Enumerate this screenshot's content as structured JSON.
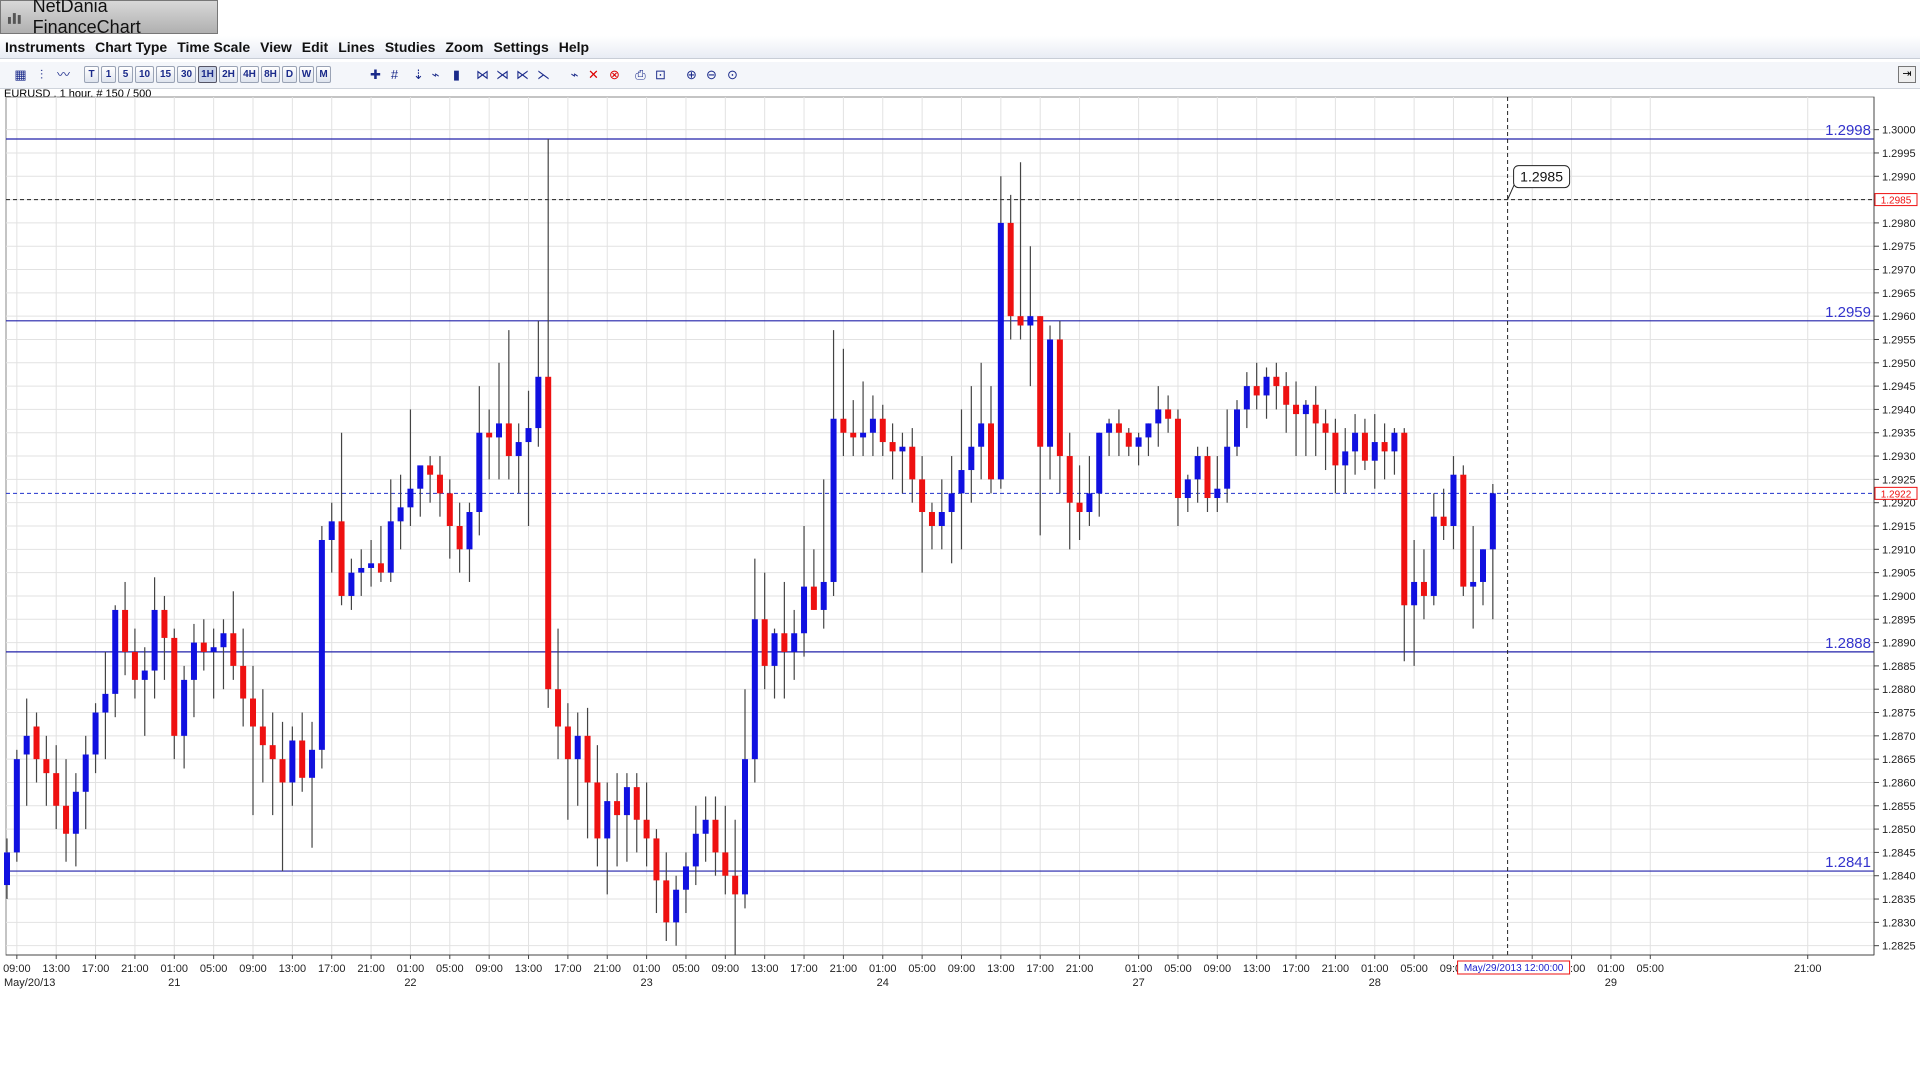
{
  "window": {
    "title": "NetDania FinanceChart"
  },
  "menu": [
    "Instruments",
    "Chart Type",
    "Time Scale",
    "View",
    "Edit",
    "Lines",
    "Studies",
    "Zoom",
    "Settings",
    "Help"
  ],
  "toolbar": {
    "timeframes": [
      "T",
      "1",
      "5",
      "10",
      "15",
      "30",
      "1H",
      "2H",
      "4H",
      "8H",
      "D",
      "W",
      "M"
    ],
    "selected_timeframe": "1H"
  },
  "instrument_label": "EURUSD , 1 hour, # 150 / 500",
  "chart_data": {
    "type": "candlestick",
    "instrument": "EURUSD",
    "timeframe": "1 hour",
    "ylim": [
      1.2823,
      1.3007
    ],
    "ytick_step": 0.0005,
    "ytick_labels": [
      "1.2825",
      "1.2830",
      "1.2835",
      "1.2840",
      "1.2845",
      "1.2850",
      "1.2855",
      "1.2860",
      "1.2865",
      "1.2870",
      "1.2875",
      "1.2880",
      "1.2885",
      "1.2890",
      "1.2895",
      "1.2900",
      "1.2905",
      "1.2910",
      "1.2915",
      "1.2920",
      "1.2925",
      "1.2930",
      "1.2935",
      "1.2940",
      "1.2945",
      "1.2950",
      "1.2955",
      "1.2960",
      "1.2965",
      "1.2970",
      "1.2975",
      "1.2980",
      "1.2985",
      "1.2990",
      "1.2995",
      "1.3000"
    ],
    "colors": {
      "up": "#1010e0",
      "down": "#ee1111",
      "wick": "#444444",
      "hline": "#2222aa",
      "grid": "#e2e2e2"
    },
    "horizontal_lines": [
      {
        "value": 1.2998,
        "label": "1.2998",
        "style": "solid"
      },
      {
        "value": 1.2959,
        "label": "1.2959",
        "style": "solid"
      },
      {
        "value": 1.2888,
        "label": "1.2888",
        "style": "solid"
      },
      {
        "value": 1.2841,
        "label": "1.2841",
        "style": "solid"
      },
      {
        "value": 1.2985,
        "label": "1.2985",
        "style": "dashed-black",
        "axis_marker": true
      },
      {
        "value": 1.2922,
        "label": "1.2922",
        "style": "dashed-blue",
        "axis_marker": true
      }
    ],
    "crosshair": {
      "bar": 152.5,
      "price": 1.2985,
      "price_label": "1.2985",
      "time_label": "May/29/2013 12:00:00"
    },
    "x_tick_labels": [
      {
        "bar": 1,
        "label": "09:00"
      },
      {
        "bar": 5,
        "label": "13:00"
      },
      {
        "bar": 9,
        "label": "17:00"
      },
      {
        "bar": 13,
        "label": "21:00"
      },
      {
        "bar": 17,
        "label": "01:00",
        "sub": "21"
      },
      {
        "bar": 21,
        "label": "05:00"
      },
      {
        "bar": 25,
        "label": "09:00"
      },
      {
        "bar": 29,
        "label": "13:00"
      },
      {
        "bar": 33,
        "label": "17:00"
      },
      {
        "bar": 37,
        "label": "21:00"
      },
      {
        "bar": 41,
        "label": "01:00",
        "sub": "22"
      },
      {
        "bar": 45,
        "label": "05:00"
      },
      {
        "bar": 49,
        "label": "09:00"
      },
      {
        "bar": 53,
        "label": "13:00"
      },
      {
        "bar": 57,
        "label": "17:00"
      },
      {
        "bar": 61,
        "label": "21:00"
      },
      {
        "bar": 65,
        "label": "01:00",
        "sub": "23"
      },
      {
        "bar": 69,
        "label": "05:00"
      },
      {
        "bar": 73,
        "label": "09:00"
      },
      {
        "bar": 77,
        "label": "13:00"
      },
      {
        "bar": 81,
        "label": "17:00"
      },
      {
        "bar": 85,
        "label": "21:00"
      },
      {
        "bar": 89,
        "label": "01:00",
        "sub": "24"
      },
      {
        "bar": 93,
        "label": "05:00"
      },
      {
        "bar": 97,
        "label": "09:00"
      },
      {
        "bar": 101,
        "label": "13:00"
      },
      {
        "bar": 105,
        "label": "17:00"
      },
      {
        "bar": 109,
        "label": "21:00"
      },
      {
        "bar": 115,
        "label": "01:00",
        "sub": "27"
      },
      {
        "bar": 119,
        "label": "05:00"
      },
      {
        "bar": 123,
        "label": "09:00"
      },
      {
        "bar": 127,
        "label": "13:00"
      },
      {
        "bar": 131,
        "label": "17:00"
      },
      {
        "bar": 135,
        "label": "21:00"
      },
      {
        "bar": 139,
        "label": "01:00",
        "sub": "28"
      },
      {
        "bar": 143,
        "label": "05:00"
      },
      {
        "bar": 147,
        "label": "09:00"
      },
      {
        "bar": 151,
        "label": "13:00"
      },
      {
        "bar": 155,
        "label": "17:00"
      },
      {
        "bar": 159,
        "label": "21:00"
      },
      {
        "bar": 163,
        "label": "01:00",
        "sub": "29"
      },
      {
        "bar": 167,
        "label": "05:00"
      },
      {
        "bar": 183,
        "label": "21:00"
      }
    ],
    "first_date_label": "May/20/13",
    "candles": [
      [
        1.2838,
        1.2848,
        1.2835,
        1.2845
      ],
      [
        1.2845,
        1.2867,
        1.2843,
        1.2865
      ],
      [
        1.2866,
        1.2878,
        1.2855,
        1.287
      ],
      [
        1.2872,
        1.2875,
        1.286,
        1.2865
      ],
      [
        1.2865,
        1.287,
        1.2855,
        1.2862
      ],
      [
        1.2862,
        1.2868,
        1.285,
        1.2855
      ],
      [
        1.2855,
        1.2865,
        1.2843,
        1.2849
      ],
      [
        1.2849,
        1.2862,
        1.2842,
        1.2858
      ],
      [
        1.2858,
        1.287,
        1.285,
        1.2866
      ],
      [
        1.2866,
        1.2877,
        1.2862,
        1.2875
      ],
      [
        1.2875,
        1.2888,
        1.2865,
        1.2879
      ],
      [
        1.2879,
        1.2898,
        1.2874,
        1.2897
      ],
      [
        1.2897,
        1.2903,
        1.2883,
        1.2888
      ],
      [
        1.2888,
        1.2893,
        1.2878,
        1.2882
      ],
      [
        1.2882,
        1.2889,
        1.287,
        1.2884
      ],
      [
        1.2884,
        1.2904,
        1.2878,
        1.2897
      ],
      [
        1.2897,
        1.29,
        1.2882,
        1.2891
      ],
      [
        1.2891,
        1.2893,
        1.2865,
        1.287
      ],
      [
        1.287,
        1.2885,
        1.2863,
        1.2882
      ],
      [
        1.2882,
        1.2894,
        1.2874,
        1.289
      ],
      [
        1.289,
        1.2895,
        1.2884,
        1.2888
      ],
      [
        1.2888,
        1.2893,
        1.2878,
        1.2889
      ],
      [
        1.2889,
        1.2895,
        1.288,
        1.2892
      ],
      [
        1.2892,
        1.2901,
        1.2882,
        1.2885
      ],
      [
        1.2885,
        1.2893,
        1.2872,
        1.2878
      ],
      [
        1.2878,
        1.2885,
        1.2853,
        1.2872
      ],
      [
        1.2872,
        1.288,
        1.286,
        1.2868
      ],
      [
        1.2868,
        1.2875,
        1.2853,
        1.2865
      ],
      [
        1.2865,
        1.2873,
        1.2841,
        1.286
      ],
      [
        1.286,
        1.2872,
        1.2855,
        1.2869
      ],
      [
        1.2869,
        1.2875,
        1.2858,
        1.2861
      ],
      [
        1.2861,
        1.2873,
        1.2846,
        1.2867
      ],
      [
        1.2867,
        1.2915,
        1.2863,
        1.2912
      ],
      [
        1.2912,
        1.292,
        1.2905,
        1.2916
      ],
      [
        1.2916,
        1.2935,
        1.2898,
        1.29
      ],
      [
        1.29,
        1.2908,
        1.2897,
        1.2905
      ],
      [
        1.2905,
        1.291,
        1.29,
        1.2906
      ],
      [
        1.2906,
        1.2912,
        1.2902,
        1.2907
      ],
      [
        1.2907,
        1.2915,
        1.2903,
        1.2905
      ],
      [
        1.2905,
        1.2925,
        1.2903,
        1.2916
      ],
      [
        1.2916,
        1.2926,
        1.291,
        1.2919
      ],
      [
        1.2919,
        1.294,
        1.2915,
        1.2923
      ],
      [
        1.2923,
        1.2927,
        1.2917,
        1.2928
      ],
      [
        1.2928,
        1.293,
        1.292,
        1.2926
      ],
      [
        1.2926,
        1.293,
        1.2917,
        1.2922
      ],
      [
        1.2922,
        1.2925,
        1.2908,
        1.2915
      ],
      [
        1.2915,
        1.292,
        1.2905,
        1.291
      ],
      [
        1.291,
        1.292,
        1.2903,
        1.2918
      ],
      [
        1.2918,
        1.2945,
        1.2913,
        1.2935
      ],
      [
        1.2935,
        1.294,
        1.2925,
        1.2934
      ],
      [
        1.2934,
        1.295,
        1.2925,
        1.2937
      ],
      [
        1.2937,
        1.2957,
        1.2925,
        1.293
      ],
      [
        1.293,
        1.2937,
        1.2922,
        1.2933
      ],
      [
        1.2933,
        1.2944,
        1.2915,
        1.2936
      ],
      [
        1.2936,
        1.2959,
        1.2932,
        1.2947
      ],
      [
        1.2947,
        1.2998,
        1.2876,
        1.288
      ],
      [
        1.288,
        1.2893,
        1.2865,
        1.2872
      ],
      [
        1.2872,
        1.2877,
        1.2852,
        1.2865
      ],
      [
        1.2865,
        1.2875,
        1.2855,
        1.287
      ],
      [
        1.287,
        1.2876,
        1.2848,
        1.286
      ],
      [
        1.286,
        1.2868,
        1.2842,
        1.2848
      ],
      [
        1.2848,
        1.286,
        1.2836,
        1.2856
      ],
      [
        1.2856,
        1.2862,
        1.2842,
        1.2853
      ],
      [
        1.2853,
        1.2862,
        1.2843,
        1.2859
      ],
      [
        1.2859,
        1.2862,
        1.2845,
        1.2852
      ],
      [
        1.2852,
        1.286,
        1.2842,
        1.2848
      ],
      [
        1.2848,
        1.285,
        1.2832,
        1.2839
      ],
      [
        1.2839,
        1.2845,
        1.2826,
        1.283
      ],
      [
        1.283,
        1.284,
        1.2825,
        1.2837
      ],
      [
        1.2837,
        1.2845,
        1.2832,
        1.2842
      ],
      [
        1.2842,
        1.2855,
        1.2838,
        1.2849
      ],
      [
        1.2849,
        1.2857,
        1.2843,
        1.2852
      ],
      [
        1.2852,
        1.2857,
        1.284,
        1.2845
      ],
      [
        1.2845,
        1.2855,
        1.2836,
        1.284
      ],
      [
        1.284,
        1.2852,
        1.2823,
        1.2836
      ],
      [
        1.2836,
        1.288,
        1.2833,
        1.2865
      ],
      [
        1.2865,
        1.2908,
        1.286,
        1.2895
      ],
      [
        1.2895,
        1.2905,
        1.288,
        1.2885
      ],
      [
        1.2885,
        1.2893,
        1.2878,
        1.2892
      ],
      [
        1.2892,
        1.2903,
        1.2878,
        1.2888
      ],
      [
        1.2888,
        1.2897,
        1.2882,
        1.2892
      ],
      [
        1.2892,
        1.2915,
        1.2887,
        1.2902
      ],
      [
        1.2902,
        1.291,
        1.2897,
        1.2897
      ],
      [
        1.2897,
        1.2925,
        1.2893,
        1.2903
      ],
      [
        1.2903,
        1.2957,
        1.29,
        1.2938
      ],
      [
        1.2938,
        1.2953,
        1.293,
        1.2935
      ],
      [
        1.2935,
        1.2942,
        1.293,
        1.2934
      ],
      [
        1.2934,
        1.2946,
        1.293,
        1.2935
      ],
      [
        1.2935,
        1.2943,
        1.293,
        1.2938
      ],
      [
        1.2938,
        1.2941,
        1.293,
        1.2933
      ],
      [
        1.2933,
        1.2937,
        1.2925,
        1.2931
      ],
      [
        1.2931,
        1.2935,
        1.2922,
        1.2932
      ],
      [
        1.2932,
        1.2936,
        1.292,
        1.2925
      ],
      [
        1.2925,
        1.293,
        1.2905,
        1.2918
      ],
      [
        1.2918,
        1.292,
        1.291,
        1.2915
      ],
      [
        1.2915,
        1.2925,
        1.291,
        1.2918
      ],
      [
        1.2918,
        1.293,
        1.2907,
        1.2922
      ],
      [
        1.2922,
        1.294,
        1.291,
        1.2927
      ],
      [
        1.2927,
        1.2945,
        1.292,
        1.2932
      ],
      [
        1.2932,
        1.295,
        1.2925,
        1.2937
      ],
      [
        1.2937,
        1.2945,
        1.2922,
        1.2925
      ],
      [
        1.2925,
        1.299,
        1.2923,
        1.298
      ],
      [
        1.298,
        1.2986,
        1.2955,
        1.296
      ],
      [
        1.296,
        1.2993,
        1.2955,
        1.2958
      ],
      [
        1.2958,
        1.2975,
        1.2945,
        1.296
      ],
      [
        1.296,
        1.296,
        1.2913,
        1.2932
      ],
      [
        1.2932,
        1.2958,
        1.2925,
        1.2955
      ],
      [
        1.2955,
        1.2959,
        1.2922,
        1.293
      ],
      [
        1.293,
        1.2935,
        1.291,
        1.292
      ],
      [
        1.292,
        1.2928,
        1.2912,
        1.2918
      ],
      [
        1.2918,
        1.293,
        1.2915,
        1.2922
      ],
      [
        1.2922,
        1.2935,
        1.2917,
        1.2935
      ],
      [
        1.2935,
        1.2938,
        1.293,
        1.2937
      ],
      [
        1.2937,
        1.294,
        1.293,
        1.2935
      ],
      [
        1.2935,
        1.2936,
        1.293,
        1.2932
      ],
      [
        1.2932,
        1.2935,
        1.2928,
        1.2934
      ],
      [
        1.2934,
        1.2937,
        1.293,
        1.2937
      ],
      [
        1.2937,
        1.2945,
        1.2932,
        1.294
      ],
      [
        1.294,
        1.2943,
        1.2935,
        1.2938
      ],
      [
        1.2938,
        1.294,
        1.2915,
        1.2921
      ],
      [
        1.2921,
        1.2926,
        1.2918,
        1.2925
      ],
      [
        1.2925,
        1.2932,
        1.292,
        1.293
      ],
      [
        1.293,
        1.2932,
        1.2918,
        1.2921
      ],
      [
        1.2921,
        1.293,
        1.2918,
        1.2923
      ],
      [
        1.2923,
        1.294,
        1.292,
        1.2932
      ],
      [
        1.2932,
        1.2942,
        1.293,
        1.294
      ],
      [
        1.294,
        1.2948,
        1.2936,
        1.2945
      ],
      [
        1.2945,
        1.295,
        1.294,
        1.2943
      ],
      [
        1.2943,
        1.2949,
        1.2938,
        1.2947
      ],
      [
        1.2947,
        1.295,
        1.294,
        1.2945
      ],
      [
        1.2945,
        1.2948,
        1.2935,
        1.2941
      ],
      [
        1.2941,
        1.2946,
        1.293,
        1.2939
      ],
      [
        1.2939,
        1.2942,
        1.293,
        1.2941
      ],
      [
        1.2941,
        1.2945,
        1.293,
        1.2937
      ],
      [
        1.2937,
        1.294,
        1.2927,
        1.2935
      ],
      [
        1.2935,
        1.2938,
        1.2922,
        1.2928
      ],
      [
        1.2928,
        1.2936,
        1.2922,
        1.2931
      ],
      [
        1.2931,
        1.2939,
        1.2926,
        1.2935
      ],
      [
        1.2935,
        1.2938,
        1.2927,
        1.2929
      ],
      [
        1.2929,
        1.2939,
        1.2923,
        1.2933
      ],
      [
        1.2933,
        1.2937,
        1.2925,
        1.2931
      ],
      [
        1.2931,
        1.2936,
        1.2926,
        1.2935
      ],
      [
        1.2935,
        1.2936,
        1.2886,
        1.2898
      ],
      [
        1.2898,
        1.2912,
        1.2885,
        1.2903
      ],
      [
        1.2903,
        1.291,
        1.2895,
        1.29
      ],
      [
        1.29,
        1.2922,
        1.2898,
        1.2917
      ],
      [
        1.2917,
        1.2923,
        1.2912,
        1.2915
      ],
      [
        1.2915,
        1.293,
        1.291,
        1.2926
      ],
      [
        1.2926,
        1.2928,
        1.29,
        1.2902
      ],
      [
        1.2902,
        1.2915,
        1.2893,
        1.2903
      ],
      [
        1.2903,
        1.291,
        1.2898,
        1.291
      ],
      [
        1.291,
        1.2924,
        1.2895,
        1.2922
      ]
    ]
  }
}
